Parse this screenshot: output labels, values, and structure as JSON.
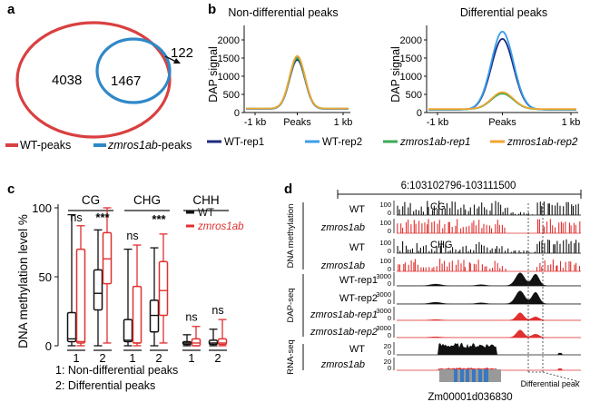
{
  "panel_labels": {
    "a": "a",
    "b": "b",
    "c": "c",
    "d": "d"
  },
  "venn": {
    "left_only": "4038",
    "overlap": "1467",
    "right_only": "122",
    "legend": [
      {
        "label": "WT-peaks",
        "color": "#e05050",
        "italic_prefix": ""
      },
      {
        "label": "-peaks",
        "color": "#3a90d0",
        "italic_prefix": "zmros1ab"
      }
    ]
  },
  "profiles": {
    "left_title": "Non-differential peaks",
    "right_title": "Differential peaks",
    "ylabel": "DAP signal",
    "yticks": [
      "0",
      "500",
      "1000",
      "1500",
      "2000"
    ],
    "xticks": [
      "-1 kb",
      "Peaks",
      "1 kb"
    ],
    "legend": [
      {
        "label": "WT-rep1",
        "color": "#1b2a80",
        "italic": false
      },
      {
        "label": "WT-rep2",
        "color": "#3b9ee8",
        "italic": false
      },
      {
        "label": "zmros1ab-rep1",
        "color": "#3aaa55",
        "italic": true
      },
      {
        "label": "zmros1ab-rep2",
        "color": "#f0a530",
        "italic": true
      }
    ]
  },
  "chart_data": [
    {
      "type": "line",
      "title": "Non-differential peaks",
      "xlabel": "",
      "ylabel": "DAP signal",
      "ylim": [
        0,
        2400
      ],
      "x": [
        "-1 kb",
        "Peaks",
        "1 kb"
      ],
      "series": [
        {
          "name": "WT-rep1",
          "peak": 1450,
          "base": 100
        },
        {
          "name": "WT-rep2",
          "peak": 1520,
          "base": 100
        },
        {
          "name": "zmros1ab-rep1",
          "peak": 1500,
          "base": 110
        },
        {
          "name": "zmros1ab-rep2",
          "peak": 1560,
          "base": 110
        }
      ]
    },
    {
      "type": "line",
      "title": "Differential peaks",
      "xlabel": "",
      "ylabel": "DAP signal",
      "ylim": [
        0,
        2400
      ],
      "x": [
        "-1 kb",
        "Peaks",
        "1 kb"
      ],
      "series": [
        {
          "name": "WT-rep1",
          "peak": 2030,
          "base": 80
        },
        {
          "name": "WT-rep2",
          "peak": 2230,
          "base": 80
        },
        {
          "name": "zmros1ab-rep1",
          "peak": 520,
          "base": 90
        },
        {
          "name": "zmros1ab-rep2",
          "peak": 560,
          "base": 95
        }
      ]
    },
    {
      "type": "box",
      "title": "",
      "ylabel": "DNA methylation level %",
      "ylim": [
        0,
        100
      ],
      "yticks": [
        "0",
        "50",
        "100"
      ],
      "contexts": [
        "CG",
        "CHG",
        "CHH"
      ],
      "x_groups": [
        "1",
        "2"
      ],
      "series": [
        {
          "name": "WT",
          "color": "#111111",
          "boxes": [
            {
              "ctx": "CG",
              "grp": "1",
              "min": 0,
              "q1": 3,
              "med": 5,
              "q3": 24,
              "max": 95,
              "sig": "ns"
            },
            {
              "ctx": "CG",
              "grp": "2",
              "min": 0,
              "q1": 26,
              "med": 38,
              "q3": 55,
              "max": 84,
              "sig": "***"
            },
            {
              "ctx": "CHG",
              "grp": "1",
              "min": 0,
              "q1": 3,
              "med": 4,
              "q3": 19,
              "max": 70,
              "sig": "ns"
            },
            {
              "ctx": "CHG",
              "grp": "2",
              "min": 0,
              "q1": 10,
              "med": 22,
              "q3": 33,
              "max": 71,
              "sig": "***"
            },
            {
              "ctx": "CHH",
              "grp": "1",
              "min": 0,
              "q1": 1,
              "med": 2,
              "q3": 3,
              "max": 8,
              "sig": "ns"
            },
            {
              "ctx": "CHH",
              "grp": "2",
              "min": 0,
              "q1": 1,
              "med": 2,
              "q3": 4,
              "max": 12,
              "sig": "ns"
            }
          ]
        },
        {
          "name": "zmros1ab",
          "color": "#e03030",
          "boxes": [
            {
              "ctx": "CG",
              "grp": "1",
              "min": 0,
              "q1": 2,
              "med": 3,
              "q3": 70,
              "max": 87
            },
            {
              "ctx": "CG",
              "grp": "2",
              "min": 2,
              "q1": 45,
              "med": 63,
              "q3": 82,
              "max": 100
            },
            {
              "ctx": "CHG",
              "grp": "1",
              "min": 0,
              "q1": 2,
              "med": 2,
              "q3": 43,
              "max": 73
            },
            {
              "ctx": "CHG",
              "grp": "2",
              "min": 2,
              "q1": 22,
              "med": 40,
              "q3": 61,
              "max": 81
            },
            {
              "ctx": "CHH",
              "grp": "1",
              "min": 0,
              "q1": 0,
              "med": 2,
              "q3": 5,
              "max": 14
            },
            {
              "ctx": "CHH",
              "grp": "2",
              "min": 0,
              "q1": 1,
              "med": 2,
              "q3": 5,
              "max": 19
            }
          ]
        }
      ]
    }
  ],
  "boxplot": {
    "legend": [
      {
        "label": "WT",
        "italic": false,
        "color": "#111111"
      },
      {
        "label": "zmros1ab",
        "italic": true,
        "color": "#e03030"
      }
    ],
    "footnote": [
      "1: Non-differential peaks",
      "2: Differential peaks"
    ]
  },
  "browser": {
    "coordinates": "6:103102796-103111500",
    "group_labels": [
      "DNA methylation",
      "DAP-seq",
      "RNA-seq"
    ],
    "track_names": [
      "WT",
      "zmros1ab",
      "WT",
      "zmros1ab",
      "WT-rep1",
      "WT-rep2",
      "zmros1ab-rep1",
      "zmros1ab-rep2",
      "WT",
      "zmros1ab"
    ],
    "track_context": [
      "CG",
      "",
      "CHG",
      "",
      "",
      "",
      "",
      "",
      "",
      ""
    ],
    "scales": [
      [
        "100",
        "0"
      ],
      [
        "100",
        "0"
      ],
      [
        "100",
        "0"
      ],
      [
        "100",
        "0"
      ],
      [
        "3000",
        "0"
      ],
      [
        "3000",
        "0"
      ],
      [
        "3000",
        "0"
      ],
      [
        "3000",
        "0"
      ],
      [
        "20",
        "0"
      ],
      [
        "20",
        "0"
      ]
    ],
    "gene_name": "Zm00001d036830",
    "diff_peak_label": "Differential peak"
  }
}
